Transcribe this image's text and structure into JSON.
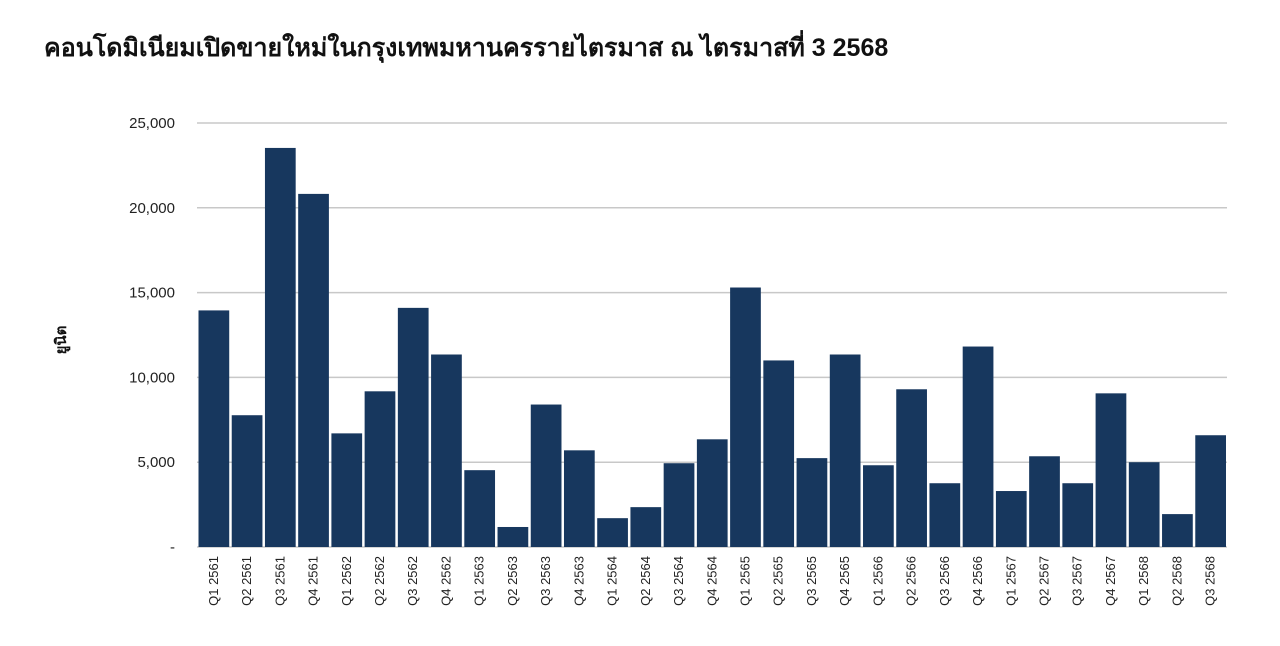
{
  "chart_data": {
    "type": "bar",
    "title": "คอนโดมิเนียมเปิดขายใหม่ในกรุงเทพมหานครรายไตรมาส ณ ไตรมาสที่ 3 2568",
    "xlabel": "",
    "ylabel": "ยูนิต",
    "ylim": [
      0,
      25000
    ],
    "yticks": [
      0,
      5000,
      10000,
      15000,
      20000,
      25000
    ],
    "ytick_labels": [
      "-",
      "5,000",
      "10,000",
      "15,000",
      "20,000",
      "25,000"
    ],
    "grid": true,
    "bar_color": "#17375e",
    "categories": [
      "Q1 2561",
      "Q2 2561",
      "Q3 2561",
      "Q4 2561",
      "Q1 2562",
      "Q2 2562",
      "Q3 2562",
      "Q4 2562",
      "Q1 2563",
      "Q2 2563",
      "Q3 2563",
      "Q4 2563",
      "Q1 2564",
      "Q2 2564",
      "Q3 2564",
      "Q4 2564",
      "Q1 2565",
      "Q2 2565",
      "Q3 2565",
      "Q4 2565",
      "Q1 2566",
      "Q2 2566",
      "Q3 2566",
      "Q4 2566",
      "Q1 2567",
      "Q2 2567",
      "Q3 2567",
      "Q4 2567",
      "Q1 2568",
      "Q2 2568",
      "Q3 2568"
    ],
    "values": [
      13950,
      7770,
      23530,
      20820,
      6700,
      9180,
      14100,
      11350,
      4530,
      1180,
      8400,
      5700,
      1700,
      2350,
      4940,
      6350,
      15300,
      11000,
      5240,
      11350,
      4820,
      9300,
      3760,
      11820,
      3300,
      5350,
      3760,
      9060,
      5000,
      1940,
      6590
    ]
  }
}
